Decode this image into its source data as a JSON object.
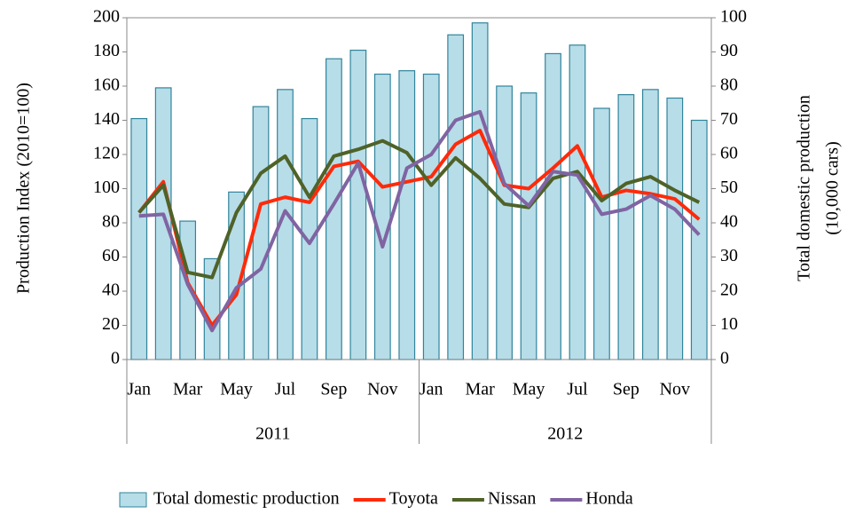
{
  "chart_data": {
    "type": "bar-line",
    "ylabel": "Production Index (2010=100)",
    "y2label": [
      "Total domestic production",
      "(10,000 cars)"
    ],
    "categories": [
      "Jan",
      null,
      "Mar",
      null,
      "May",
      null,
      "Jul",
      null,
      "Sep",
      null,
      "Nov",
      null,
      "Jan",
      null,
      "Mar",
      null,
      "May",
      null,
      "Jul",
      null,
      "Sep",
      null,
      "Nov",
      null
    ],
    "groups": [
      "2011",
      "2012"
    ],
    "ylim": [
      0,
      200
    ],
    "yticks": [
      0,
      20,
      40,
      60,
      80,
      100,
      120,
      140,
      160,
      180,
      200
    ],
    "y2lim": [
      0,
      100
    ],
    "y2ticks": [
      0,
      10,
      20,
      30,
      40,
      50,
      60,
      70,
      80,
      90,
      100
    ],
    "legend": "bottom",
    "series": [
      {
        "name": "Total domestic production",
        "type": "bar",
        "axis": "y2",
        "color": "#b7dde8",
        "edgecolor": "#31849b",
        "values": [
          70.5,
          79.5,
          40.5,
          29.5,
          49,
          74,
          79,
          70.5,
          88,
          90.5,
          83.5,
          84.5,
          83.5,
          95,
          98.5,
          80,
          78,
          89.5,
          92,
          73.5,
          77.5,
          79,
          76.5,
          70
        ]
      },
      {
        "name": "Toyota",
        "type": "line",
        "color": "#ff2a0a",
        "values": [
          86,
          104,
          45,
          20,
          38,
          91,
          95,
          92,
          113,
          116,
          101,
          104,
          107,
          126,
          134,
          102,
          100,
          112,
          125,
          95,
          99,
          97,
          94,
          82
        ]
      },
      {
        "name": "Nissan",
        "type": "line",
        "color": "#4f6228",
        "values": [
          86,
          102,
          51,
          48,
          86,
          109,
          119,
          95,
          119,
          123,
          128,
          121,
          102,
          118,
          106,
          91,
          89,
          106,
          110,
          93,
          103,
          107,
          99,
          92
        ]
      },
      {
        "name": "Honda",
        "type": "line",
        "color": "#8064a2",
        "values": [
          84,
          85,
          44,
          17,
          42,
          53,
          87,
          68,
          91,
          115,
          66,
          112,
          120,
          140,
          145,
          103,
          90,
          110,
          108,
          85,
          88,
          96,
          88,
          73
        ]
      }
    ]
  }
}
